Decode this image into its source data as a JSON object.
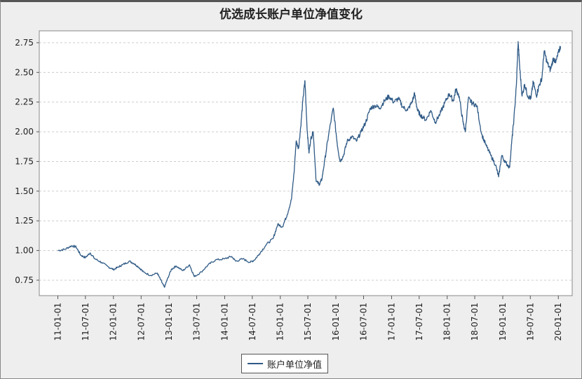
{
  "chart_data": {
    "type": "line",
    "title": "优选成长账户单位净值变化",
    "xlabel": "",
    "ylabel": "",
    "ylim": [
      0.62,
      2.85
    ],
    "yticks": [
      0.75,
      1.0,
      1.25,
      1.5,
      1.75,
      2.0,
      2.25,
      2.5,
      2.75
    ],
    "ytick_labels": [
      "0.75",
      "1.00",
      "1.25",
      "1.50",
      "1.75",
      "2.00",
      "2.25",
      "2.50",
      "2.75"
    ],
    "xticks": [
      "11-01-01",
      "11-07-01",
      "12-01-01",
      "12-07-01",
      "13-01-01",
      "13-07-01",
      "14-01-01",
      "14-07-01",
      "15-01-01",
      "15-07-01",
      "16-01-01",
      "16-07-01",
      "17-01-01",
      "17-07-01",
      "18-01-01",
      "18-07-01",
      "19-01-01",
      "19-07-01",
      "20-01-01"
    ],
    "xlim": [
      "2010-09-01",
      "2020-04-01"
    ],
    "grid": true,
    "legend_position": "bottom",
    "line_color": "#2f5a86",
    "series": [
      {
        "name": "账户单位净值",
        "points": [
          [
            "2011-01-01",
            1.0
          ],
          [
            "2011-02-15",
            1.01
          ],
          [
            "2011-04-01",
            1.04
          ],
          [
            "2011-05-01",
            1.03
          ],
          [
            "2011-06-01",
            0.96
          ],
          [
            "2011-07-01",
            0.94
          ],
          [
            "2011-08-01",
            0.98
          ],
          [
            "2011-09-01",
            0.93
          ],
          [
            "2011-10-15",
            0.9
          ],
          [
            "2011-12-01",
            0.86
          ],
          [
            "2012-01-01",
            0.84
          ],
          [
            "2012-02-01",
            0.86
          ],
          [
            "2012-03-01",
            0.88
          ],
          [
            "2012-04-15",
            0.91
          ],
          [
            "2012-05-15",
            0.89
          ],
          [
            "2012-06-15",
            0.86
          ],
          [
            "2012-07-15",
            0.82
          ],
          [
            "2012-09-01",
            0.79
          ],
          [
            "2012-10-15",
            0.81
          ],
          [
            "2012-11-15",
            0.73
          ],
          [
            "2012-12-01",
            0.69
          ],
          [
            "2012-12-15",
            0.74
          ],
          [
            "2013-01-15",
            0.84
          ],
          [
            "2013-02-15",
            0.87
          ],
          [
            "2013-04-01",
            0.83
          ],
          [
            "2013-05-15",
            0.88
          ],
          [
            "2013-06-15",
            0.78
          ],
          [
            "2013-08-01",
            0.82
          ],
          [
            "2013-09-15",
            0.88
          ],
          [
            "2013-11-01",
            0.92
          ],
          [
            "2014-01-01",
            0.93
          ],
          [
            "2014-02-15",
            0.95
          ],
          [
            "2014-03-15",
            0.91
          ],
          [
            "2014-05-01",
            0.93
          ],
          [
            "2014-06-15",
            0.9
          ],
          [
            "2014-07-15",
            0.92
          ],
          [
            "2014-08-15",
            0.97
          ],
          [
            "2014-10-01",
            1.05
          ],
          [
            "2014-11-15",
            1.1
          ],
          [
            "2014-12-15",
            1.22
          ],
          [
            "2015-01-15",
            1.2
          ],
          [
            "2015-02-15",
            1.3
          ],
          [
            "2015-03-15",
            1.43
          ],
          [
            "2015-04-01",
            1.65
          ],
          [
            "2015-04-15",
            1.92
          ],
          [
            "2015-05-01",
            1.86
          ],
          [
            "2015-05-15",
            2.04
          ],
          [
            "2015-06-01",
            2.3
          ],
          [
            "2015-06-12",
            2.43
          ],
          [
            "2015-06-25",
            2.05
          ],
          [
            "2015-07-08",
            1.82
          ],
          [
            "2015-07-20",
            1.94
          ],
          [
            "2015-08-05",
            2.0
          ],
          [
            "2015-08-25",
            1.58
          ],
          [
            "2015-09-15",
            1.56
          ],
          [
            "2015-10-01",
            1.6
          ],
          [
            "2015-10-20",
            1.76
          ],
          [
            "2015-11-15",
            1.98
          ],
          [
            "2015-12-15",
            2.2
          ],
          [
            "2016-01-10",
            1.9
          ],
          [
            "2016-01-28",
            1.75
          ],
          [
            "2016-02-20",
            1.8
          ],
          [
            "2016-03-15",
            1.92
          ],
          [
            "2016-04-15",
            1.96
          ],
          [
            "2016-05-15",
            1.92
          ],
          [
            "2016-06-15",
            2.0
          ],
          [
            "2016-07-15",
            2.08
          ],
          [
            "2016-08-15",
            2.2
          ],
          [
            "2016-09-15",
            2.22
          ],
          [
            "2016-10-15",
            2.2
          ],
          [
            "2016-11-15",
            2.26
          ],
          [
            "2016-12-15",
            2.3
          ],
          [
            "2017-01-15",
            2.25
          ],
          [
            "2017-02-15",
            2.28
          ],
          [
            "2017-03-15",
            2.21
          ],
          [
            "2017-04-15",
            2.18
          ],
          [
            "2017-05-15",
            2.25
          ],
          [
            "2017-06-01",
            2.32
          ],
          [
            "2017-06-20",
            2.18
          ],
          [
            "2017-07-10",
            2.14
          ],
          [
            "2017-08-15",
            2.1
          ],
          [
            "2017-09-15",
            2.18
          ],
          [
            "2017-10-15",
            2.08
          ],
          [
            "2017-11-15",
            2.15
          ],
          [
            "2017-12-15",
            2.24
          ],
          [
            "2018-01-15",
            2.32
          ],
          [
            "2018-02-10",
            2.26
          ],
          [
            "2018-02-28",
            2.36
          ],
          [
            "2018-03-20",
            2.3
          ],
          [
            "2018-04-15",
            2.08
          ],
          [
            "2018-04-30",
            2.0
          ],
          [
            "2018-05-20",
            2.28
          ],
          [
            "2018-06-15",
            2.24
          ],
          [
            "2018-07-15",
            2.22
          ],
          [
            "2018-08-15",
            1.98
          ],
          [
            "2018-09-15",
            1.88
          ],
          [
            "2018-10-15",
            1.8
          ],
          [
            "2018-11-15",
            1.72
          ],
          [
            "2018-12-05",
            1.62
          ],
          [
            "2018-12-25",
            1.8
          ],
          [
            "2019-01-20",
            1.74
          ],
          [
            "2019-02-15",
            1.7
          ],
          [
            "2019-02-28",
            1.9
          ],
          [
            "2019-03-15",
            2.1
          ],
          [
            "2019-04-01",
            2.4
          ],
          [
            "2019-04-12",
            2.76
          ],
          [
            "2019-04-22",
            2.55
          ],
          [
            "2019-05-08",
            2.3
          ],
          [
            "2019-05-25",
            2.4
          ],
          [
            "2019-06-15",
            2.3
          ],
          [
            "2019-07-05",
            2.28
          ],
          [
            "2019-07-20",
            2.42
          ],
          [
            "2019-08-10",
            2.3
          ],
          [
            "2019-08-25",
            2.38
          ],
          [
            "2019-09-15",
            2.45
          ],
          [
            "2019-09-30",
            2.68
          ],
          [
            "2019-10-20",
            2.58
          ],
          [
            "2019-11-10",
            2.52
          ],
          [
            "2019-11-30",
            2.62
          ],
          [
            "2019-12-15",
            2.58
          ],
          [
            "2020-01-05",
            2.68
          ],
          [
            "2020-01-15",
            2.72
          ]
        ]
      }
    ]
  }
}
